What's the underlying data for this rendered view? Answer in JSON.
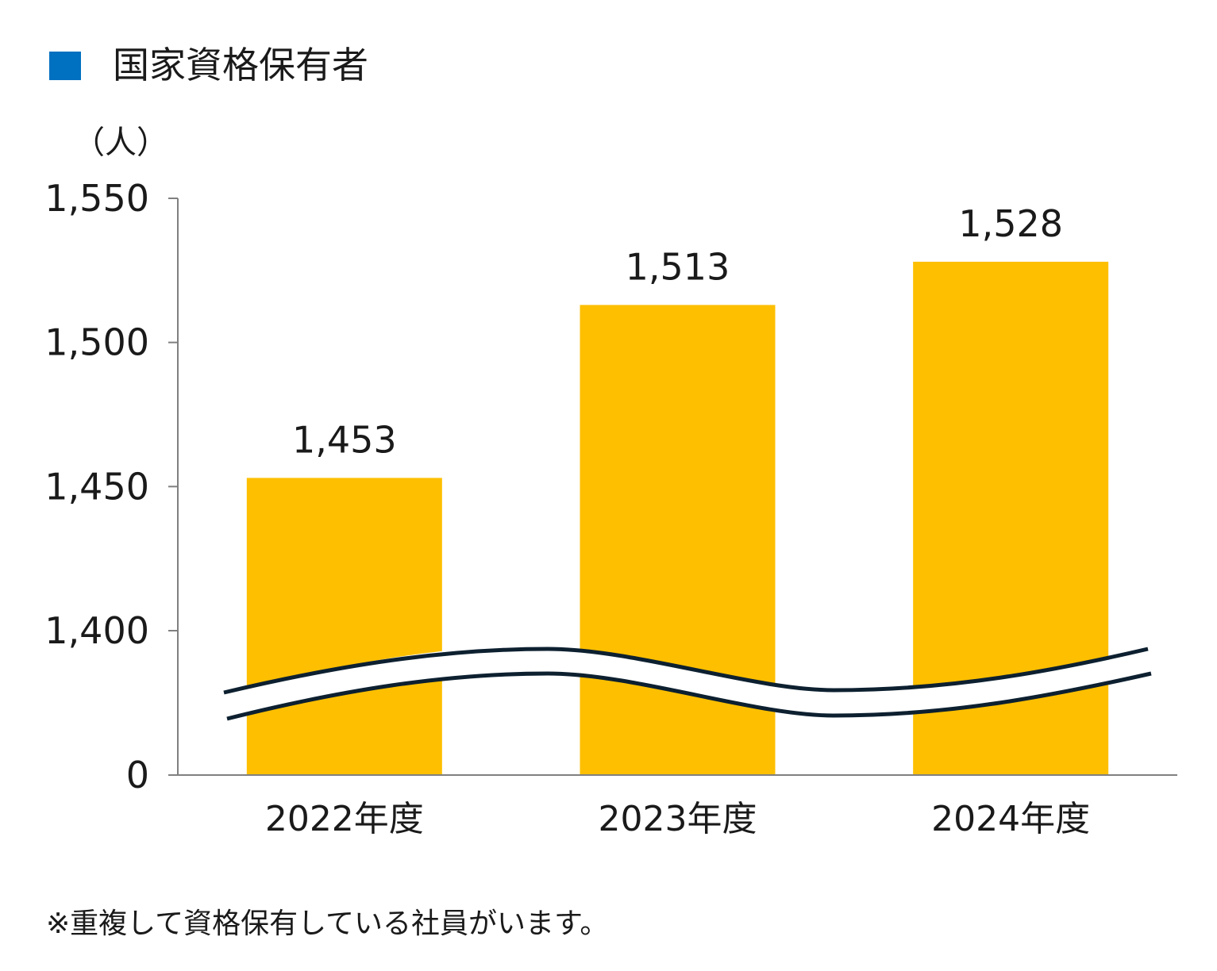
{
  "legend": {
    "label": "国家資格保有者",
    "color": "#0070c0"
  },
  "unit_label": "（人）",
  "note": "※重複して資格保有している社員がいます。",
  "colors": {
    "bar": "#fdbf00",
    "axis": "#808080",
    "break_line": "#0d2030",
    "text": "#1a1a1a"
  },
  "chart_data": {
    "type": "bar",
    "categories": [
      "2022年度",
      "2023年度",
      "2024年度"
    ],
    "series": [
      {
        "name": "国家資格保有者",
        "values": [
          1453,
          1513,
          1528
        ]
      }
    ],
    "data_labels": [
      "1,453",
      "1,513",
      "1,528"
    ],
    "y_ticks": [
      {
        "value": 0,
        "label": "0"
      },
      {
        "value": 1400,
        "label": "1,400"
      },
      {
        "value": 1450,
        "label": "1,450"
      },
      {
        "value": 1500,
        "label": "1,500"
      },
      {
        "value": 1550,
        "label": "1,550"
      }
    ],
    "ylabel": "（人）",
    "ylim": [
      0,
      1550
    ],
    "axis_break": true,
    "grid": false,
    "legend_position": "top-left"
  }
}
